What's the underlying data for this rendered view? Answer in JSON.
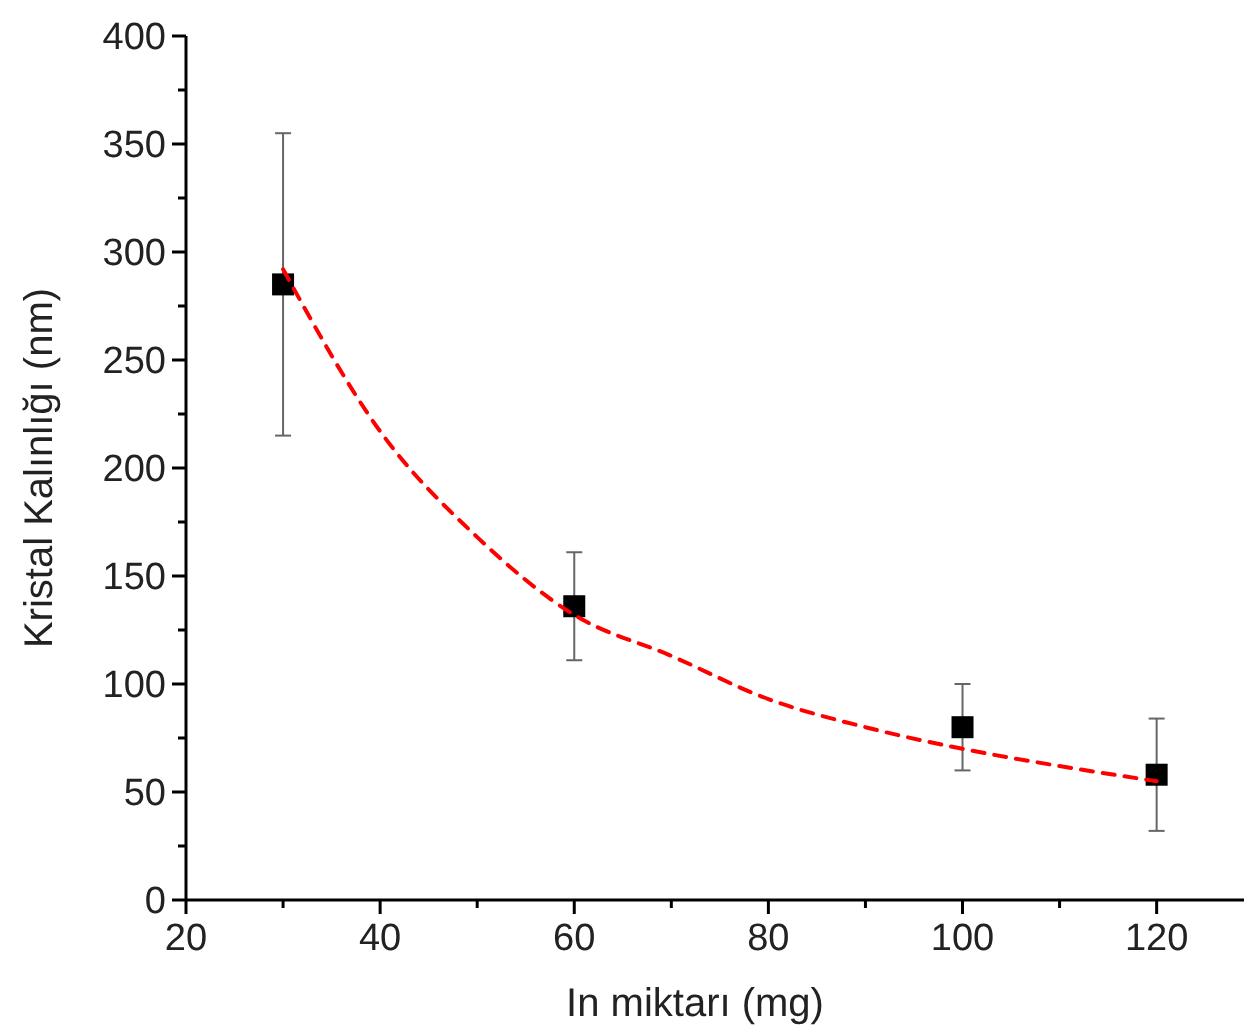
{
  "chart_data": {
    "type": "scatter",
    "xlabel": "In miktarı (mg)",
    "ylabel": "Kristal Kalınlığı (nm)",
    "xlim": [
      20,
      129
    ],
    "xticks": [
      20,
      {
        "value": 30,
        "label": null
      },
      40,
      {
        "value": 50,
        "label": null
      },
      60,
      {
        "value": 70,
        "label": null
      },
      80,
      {
        "value": 90,
        "label": null
      },
      100,
      {
        "value": 110,
        "label": null
      },
      120
    ],
    "ylim": [
      0,
      400
    ],
    "yticks": [
      0,
      {
        "value": 25,
        "label": null
      },
      50,
      {
        "value": 75,
        "label": null
      },
      100,
      {
        "value": 125,
        "label": null
      },
      150,
      {
        "value": 175,
        "label": null
      },
      200,
      {
        "value": 225,
        "label": null
      },
      250,
      {
        "value": 275,
        "label": null
      },
      300,
      {
        "value": 325,
        "label": null
      },
      350,
      {
        "value": 375,
        "label": null
      },
      400
    ],
    "grid": false,
    "series": [
      {
        "color": "#000000",
        "marker": "square",
        "x": [
          30,
          60,
          100,
          120
        ],
        "values": [
          285,
          136,
          80,
          58
        ],
        "errors": [
          70,
          25,
          20,
          26
        ]
      },
      {
        "type": "line",
        "color": "#ff0000",
        "marker": "none",
        "line_style": "dashed",
        "x": [
          30,
          40,
          50,
          60,
          70,
          80,
          90,
          100,
          110,
          120
        ],
        "values": [
          292,
          217,
          168,
          132,
          113,
          93,
          80,
          70,
          62,
          55
        ]
      }
    ]
  }
}
